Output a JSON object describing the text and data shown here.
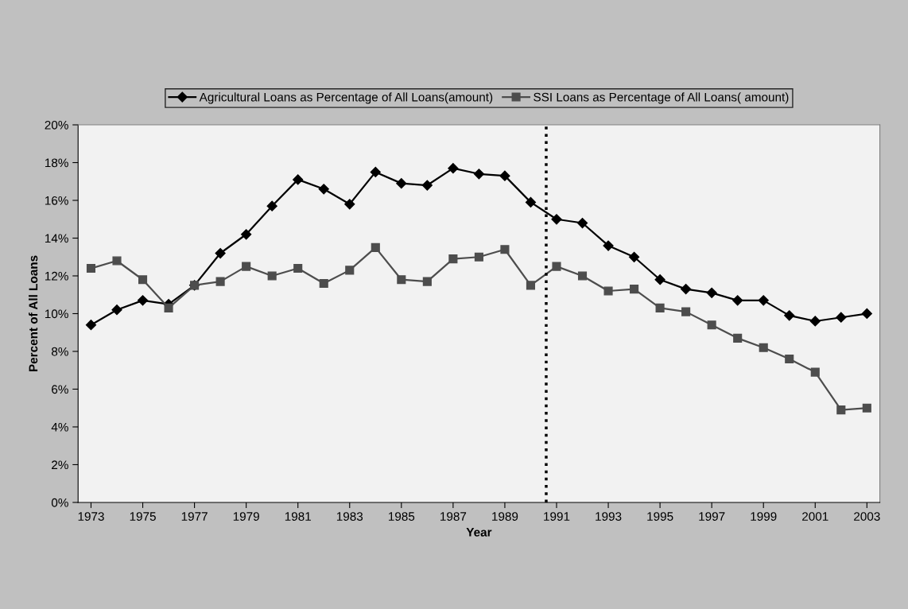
{
  "chart_data": {
    "type": "line",
    "xlabel": "Year",
    "ylabel": "Percent of All Loans",
    "x": [
      1973,
      1974,
      1975,
      1976,
      1977,
      1978,
      1979,
      1980,
      1981,
      1982,
      1983,
      1984,
      1985,
      1986,
      1987,
      1988,
      1989,
      1990,
      1991,
      1992,
      1993,
      1994,
      1995,
      1996,
      1997,
      1998,
      1999,
      2000,
      2001,
      2002,
      2003
    ],
    "series": [
      {
        "name": "Agricultural Loans as Percentage of All Loans(amount)",
        "color": "#000000",
        "marker": "diamond",
        "values": [
          9.4,
          10.2,
          10.7,
          10.5,
          11.5,
          13.2,
          14.2,
          15.7,
          17.1,
          16.6,
          15.8,
          17.5,
          16.9,
          16.8,
          17.7,
          17.4,
          17.3,
          15.9,
          15.0,
          14.8,
          13.6,
          13.0,
          11.8,
          11.3,
          11.1,
          10.7,
          10.7,
          9.9,
          9.6,
          9.8,
          10.0
        ]
      },
      {
        "name": "SSI Loans as Percentage of All Loans( amount)",
        "color": "#4d4d4d",
        "marker": "square",
        "values": [
          12.4,
          12.8,
          11.8,
          10.3,
          11.5,
          11.7,
          12.5,
          12.0,
          12.4,
          11.6,
          12.3,
          13.5,
          11.8,
          11.7,
          12.9,
          13.0,
          13.4,
          11.5,
          12.5,
          12.0,
          11.2,
          11.3,
          10.3,
          10.1,
          9.4,
          8.7,
          8.2,
          7.6,
          6.9,
          4.9,
          5.0
        ]
      }
    ],
    "xlim": [
      1972.5,
      2003.5
    ],
    "xticks": [
      1973,
      1975,
      1977,
      1979,
      1981,
      1983,
      1985,
      1987,
      1989,
      1991,
      1993,
      1995,
      1997,
      1999,
      2001,
      2003
    ],
    "ylim": [
      0,
      20
    ],
    "yticks": [
      {
        "value": 0,
        "label": "0%"
      },
      {
        "value": 2,
        "label": "2%"
      },
      {
        "value": 4,
        "label": "4%"
      },
      {
        "value": 6,
        "label": "6%"
      },
      {
        "value": 8,
        "label": "8%"
      },
      {
        "value": 10,
        "label": "10%"
      },
      {
        "value": 12,
        "label": "12%"
      },
      {
        "value": 14,
        "label": "14%"
      },
      {
        "value": 16,
        "label": "16%"
      },
      {
        "value": 18,
        "label": "18%"
      },
      {
        "value": 20,
        "label": "20%"
      }
    ],
    "ref_lines": [
      {
        "axis": "x",
        "value": 1990.6,
        "color": "#000000",
        "line_style": "dotted"
      }
    ],
    "grid": false,
    "legend": "top",
    "line_style": "solid"
  }
}
